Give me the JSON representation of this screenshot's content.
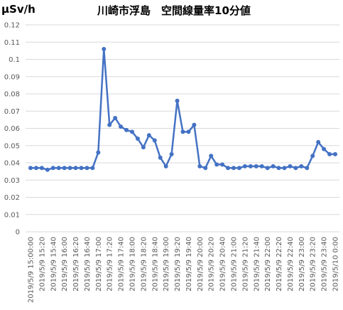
{
  "chart_data": {
    "type": "line",
    "title": "川崎市浮島　空間線量率10分値",
    "y_label": "μSv/h",
    "categories": [
      "2019/5/9  15:00:00",
      null,
      "2019/5/9 15:20",
      null,
      "2019/5/9 15:40",
      null,
      "2019/5/9 16:00",
      null,
      "2019/5/9 16:20",
      null,
      "2019/5/9 16:40",
      null,
      "2019/5/9 17:00",
      null,
      "2019/5/9 17:20",
      null,
      "2019/5/9 17:40",
      null,
      "2019/5/9 18:00",
      null,
      "2019/5/9 18:20",
      null,
      "2019/5/9 18:40",
      null,
      "2019/5/9 19:00",
      null,
      "2019/5/9 19:20",
      null,
      "2019/5/9 19:40",
      null,
      "2019/5/9 20:00",
      null,
      "2019/5/9 20:20",
      null,
      "2019/5/9 20:40",
      null,
      "2019/5/9 21:00",
      null,
      "2019/5/9 21:20",
      null,
      "2019/5/9 21:40",
      null,
      "2019/5/9 22:00",
      null,
      "2019/5/9 22:20",
      null,
      "2019/5/9 22:40",
      null,
      "2019/5/9 23:00",
      null,
      "2019/5/9 23:20",
      null,
      "2019/5/9 23:40",
      null,
      "2019/5/10 0:00"
    ],
    "series": [
      {
        "name": "空間線量率",
        "color": "#4472c4",
        "values": [
          0.037,
          0.037,
          0.037,
          0.036,
          0.037,
          0.037,
          0.037,
          0.037,
          0.037,
          0.037,
          0.037,
          0.037,
          0.046,
          0.106,
          0.062,
          0.066,
          0.061,
          0.059,
          0.058,
          0.054,
          0.049,
          0.056,
          0.053,
          0.043,
          0.038,
          0.045,
          0.076,
          0.058,
          0.058,
          0.062,
          0.038,
          0.037,
          0.044,
          0.039,
          0.039,
          0.037,
          0.037,
          0.037,
          0.038,
          0.038,
          0.038,
          0.038,
          0.037,
          0.038,
          0.037,
          0.037,
          0.038,
          0.037,
          0.038,
          0.037,
          0.044,
          0.052,
          0.048,
          0.045,
          0.045
        ]
      }
    ],
    "ylim": [
      0,
      0.12
    ],
    "yticks": [
      0,
      0.01,
      0.02,
      0.03,
      0.04,
      0.05,
      0.06,
      0.07,
      0.08,
      0.09,
      0.1,
      0.11,
      0.12
    ],
    "grid": true
  }
}
